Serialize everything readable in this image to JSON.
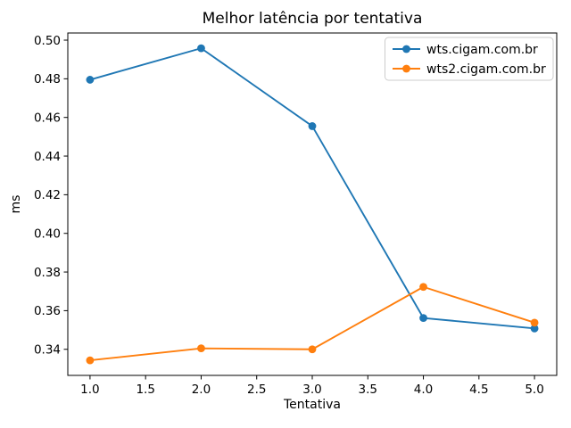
{
  "figure": {
    "kind": "matplotlib-line-chart"
  },
  "chart_data": {
    "type": "line",
    "title": "Melhor latência por tentativa",
    "xlabel": "Tentativa",
    "ylabel": "ms",
    "x": [
      1,
      2,
      3,
      4,
      5
    ],
    "series": [
      {
        "name": "wts.cigam.com.br",
        "color": "#1f77b4",
        "values": [
          0.4795,
          0.4958,
          0.4555,
          0.3562,
          0.3508
        ]
      },
      {
        "name": "wts2.cigam.com.br",
        "color": "#ff7f0e",
        "values": [
          0.3343,
          0.3405,
          0.34,
          0.3723,
          0.3538
        ]
      }
    ],
    "xlim": [
      0.8,
      5.2
    ],
    "ylim": [
      0.3265,
      0.5037
    ],
    "xticks": {
      "values": [
        1.0,
        1.5,
        2.0,
        2.5,
        3.0,
        3.5,
        4.0,
        4.5,
        5.0
      ],
      "labels": [
        "1.0",
        "1.5",
        "2.0",
        "2.5",
        "3.0",
        "3.5",
        "4.0",
        "4.5",
        "5.0"
      ]
    },
    "yticks": {
      "values": [
        0.34,
        0.36,
        0.38,
        0.4,
        0.42,
        0.44,
        0.46,
        0.48,
        0.5
      ],
      "labels": [
        "0.34",
        "0.36",
        "0.38",
        "0.40",
        "0.42",
        "0.44",
        "0.46",
        "0.48",
        "0.50"
      ]
    },
    "grid": false,
    "legend_position": "upper right",
    "marker": "circle"
  },
  "colors": {
    "background": "#ffffff",
    "axis": "#000000",
    "text": "#000000",
    "legend_border": "#cccccc",
    "series_blue": "#1f77b4",
    "series_orange": "#ff7f0e"
  }
}
